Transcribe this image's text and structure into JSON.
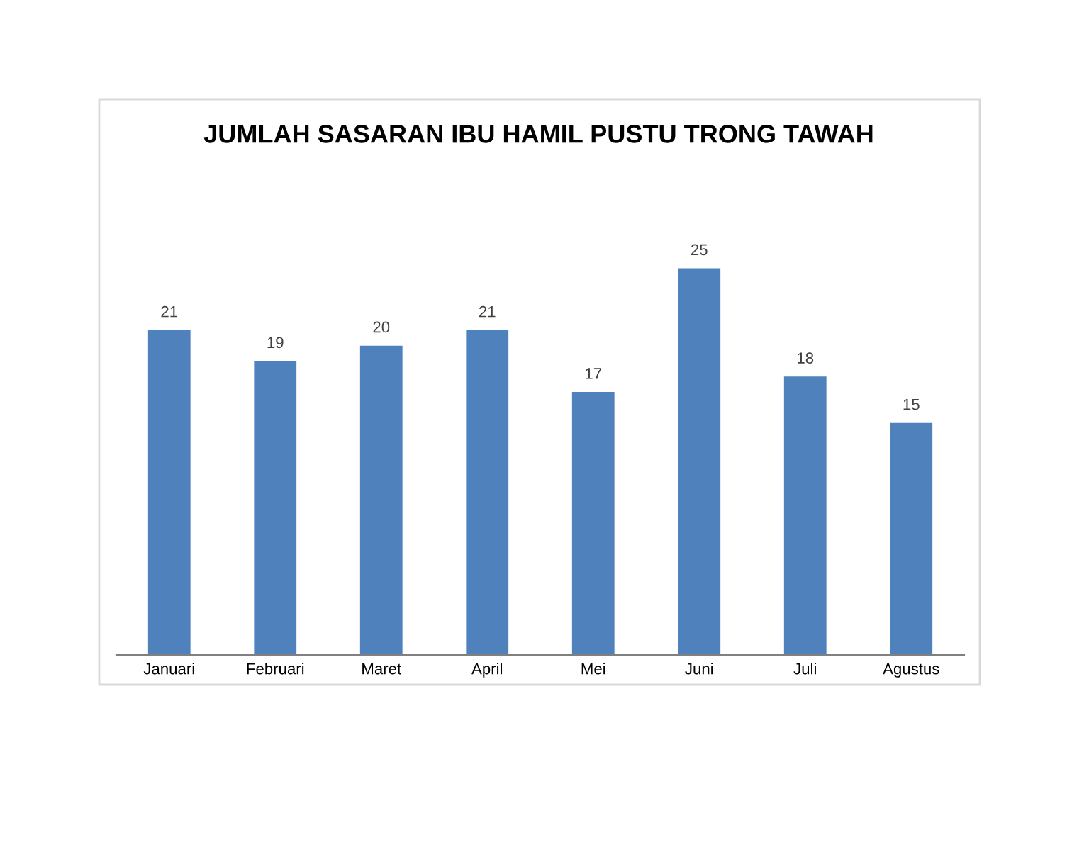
{
  "chart_data": {
    "type": "bar",
    "title": "JUMLAH SASARAN IBU HAMIL PUSTU TRONG TAWAH",
    "categories": [
      "Januari",
      "Februari",
      "Maret",
      "April",
      "Mei",
      "Juni",
      "Juli",
      "Agustus"
    ],
    "values": [
      21,
      19,
      20,
      21,
      17,
      25,
      18,
      15
    ],
    "color": "#4f81bd",
    "data_labels": true,
    "grid": false,
    "legend": false
  }
}
